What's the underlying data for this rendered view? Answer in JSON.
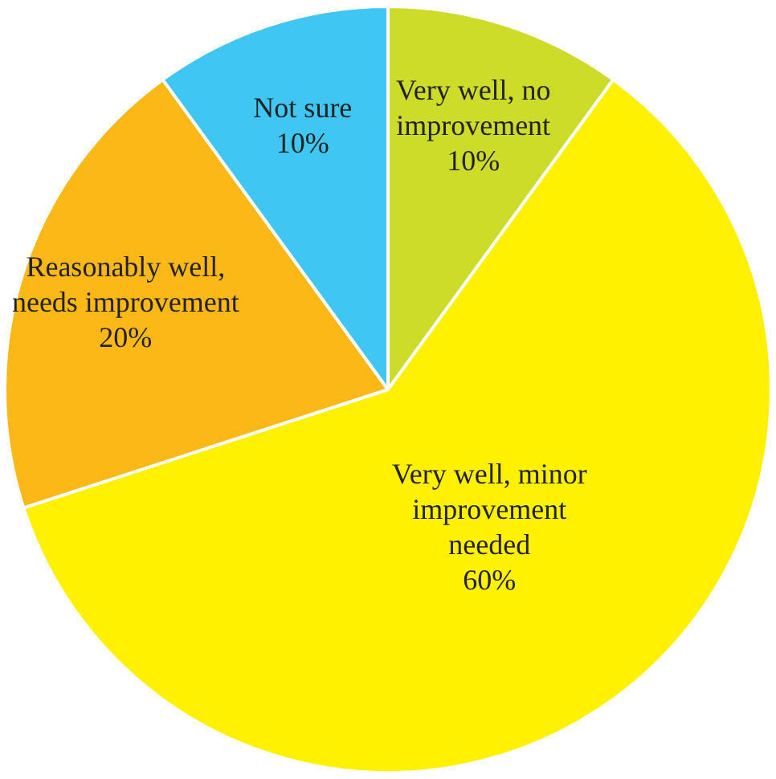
{
  "chart_data": {
    "type": "pie",
    "categories": [
      "Very well, no improvement",
      "Very well, minor improvement needed",
      "Reasonably well, needs improvement",
      "Not sure"
    ],
    "values": [
      10,
      60,
      20,
      10
    ],
    "colors": [
      "#cddc29",
      "#fff100",
      "#fbb816",
      "#3fc6f2"
    ],
    "value_labels": [
      "10%",
      "60%",
      "20%",
      "10%"
    ],
    "legend": false
  }
}
